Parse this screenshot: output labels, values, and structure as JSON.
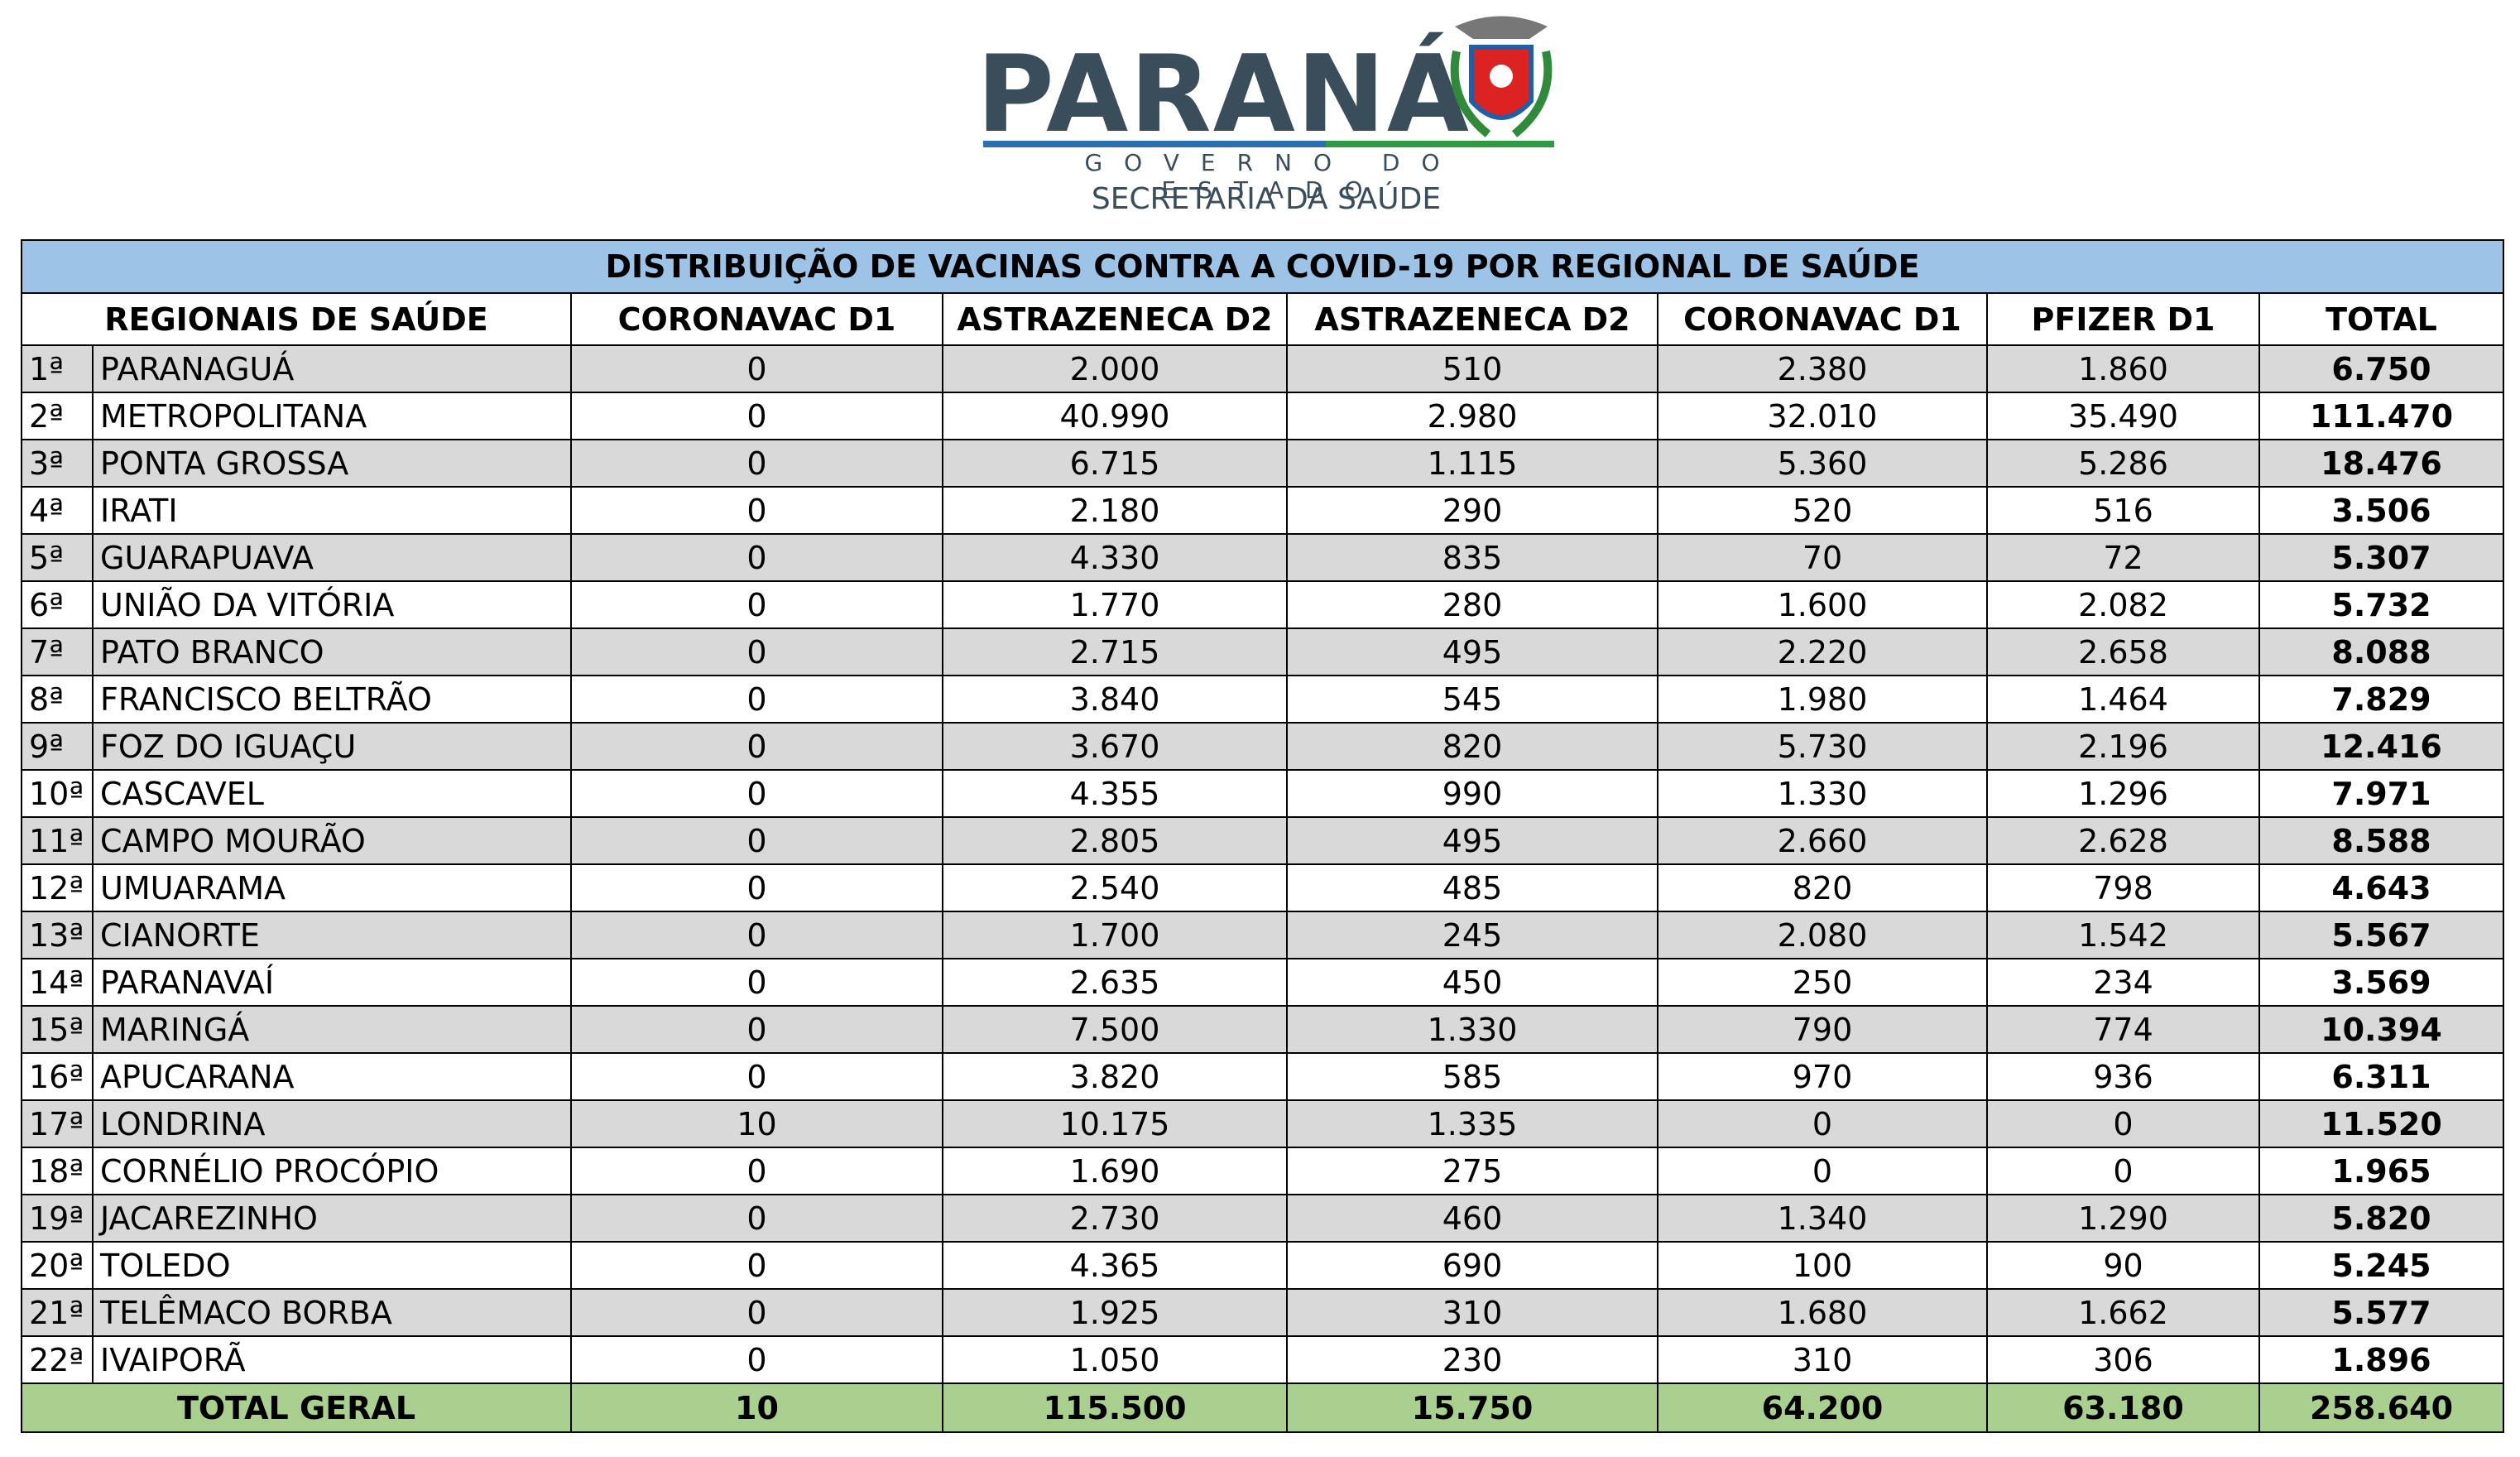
{
  "header": {
    "title": "PARANÁ",
    "subtitle": "GOVERNO DO ESTADO",
    "department": "SECRETARIA DA SAÚDE"
  },
  "table": {
    "title": "DISTRIBUIÇÃO DE VACINAS CONTRA A COVID-19 POR REGIONAL DE SAÚDE",
    "columns": [
      "REGIONAIS DE SAÚDE",
      "CORONAVAC D1",
      "ASTRAZENECA D2",
      "ASTRAZENECA D2",
      "CORONAVAC D1",
      "PFIZER D1",
      "TOTAL"
    ],
    "rows": [
      [
        "1ª",
        "PARANAGUÁ",
        "0",
        "2.000",
        "510",
        "2.380",
        "1.860",
        "6.750"
      ],
      [
        "2ª",
        "METROPOLITANA",
        "0",
        "40.990",
        "2.980",
        "32.010",
        "35.490",
        "111.470"
      ],
      [
        "3ª",
        "PONTA GROSSA",
        "0",
        "6.715",
        "1.115",
        "5.360",
        "5.286",
        "18.476"
      ],
      [
        "4ª",
        "IRATI",
        "0",
        "2.180",
        "290",
        "520",
        "516",
        "3.506"
      ],
      [
        "5ª",
        "GUARAPUAVA",
        "0",
        "4.330",
        "835",
        "70",
        "72",
        "5.307"
      ],
      [
        "6ª",
        "UNIÃO DA VITÓRIA",
        "0",
        "1.770",
        "280",
        "1.600",
        "2.082",
        "5.732"
      ],
      [
        "7ª",
        "PATO BRANCO",
        "0",
        "2.715",
        "495",
        "2.220",
        "2.658",
        "8.088"
      ],
      [
        "8ª",
        "FRANCISCO BELTRÃO",
        "0",
        "3.840",
        "545",
        "1.980",
        "1.464",
        "7.829"
      ],
      [
        "9ª",
        "FOZ DO IGUAÇU",
        "0",
        "3.670",
        "820",
        "5.730",
        "2.196",
        "12.416"
      ],
      [
        "10ª",
        "CASCAVEL",
        "0",
        "4.355",
        "990",
        "1.330",
        "1.296",
        "7.971"
      ],
      [
        "11ª",
        "CAMPO MOURÃO",
        "0",
        "2.805",
        "495",
        "2.660",
        "2.628",
        "8.588"
      ],
      [
        "12ª",
        "UMUARAMA",
        "0",
        "2.540",
        "485",
        "820",
        "798",
        "4.643"
      ],
      [
        "13ª",
        "CIANORTE",
        "0",
        "1.700",
        "245",
        "2.080",
        "1.542",
        "5.567"
      ],
      [
        "14ª",
        "PARANAVAÍ",
        "0",
        "2.635",
        "450",
        "250",
        "234",
        "3.569"
      ],
      [
        "15ª",
        "MARINGÁ",
        "0",
        "7.500",
        "1.330",
        "790",
        "774",
        "10.394"
      ],
      [
        "16ª",
        "APUCARANA",
        "0",
        "3.820",
        "585",
        "970",
        "936",
        "6.311"
      ],
      [
        "17ª",
        "LONDRINA",
        "10",
        "10.175",
        "1.335",
        "0",
        "0",
        "11.520"
      ],
      [
        "18ª",
        "CORNÉLIO PROCÓPIO",
        "0",
        "1.690",
        "275",
        "0",
        "0",
        "1.965"
      ],
      [
        "19ª",
        "JACAREZINHO",
        "0",
        "2.730",
        "460",
        "1.340",
        "1.290",
        "5.820"
      ],
      [
        "20ª",
        "TOLEDO",
        "0",
        "4.365",
        "690",
        "100",
        "90",
        "5.245"
      ],
      [
        "21ª",
        "TELÊMACO BORBA",
        "0",
        "1.925",
        "310",
        "1.680",
        "1.662",
        "5.577"
      ],
      [
        "22ª",
        "IVAIPORÃ",
        "0",
        "1.050",
        "230",
        "310",
        "306",
        "1.896"
      ]
    ],
    "total": {
      "label": "TOTAL GERAL",
      "values": [
        "10",
        "115.500",
        "15.750",
        "64.200",
        "63.180",
        "258.640"
      ]
    }
  }
}
